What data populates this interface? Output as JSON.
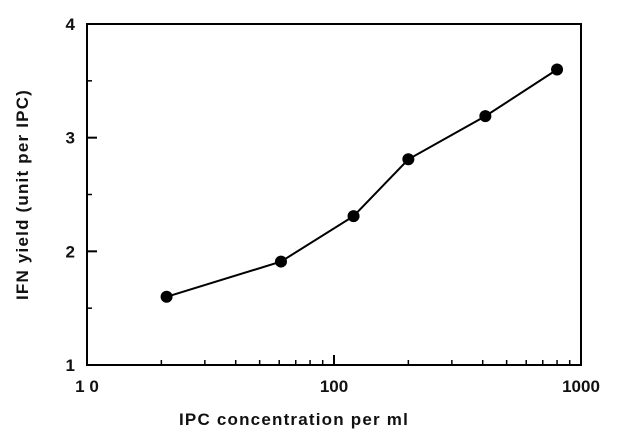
{
  "chart_data": {
    "type": "line",
    "xlabel": "IPC concentration per ml",
    "ylabel": "IFN yield (unit per IPC)",
    "xscale": "log",
    "xlim": [
      10,
      1000
    ],
    "ylim": [
      1,
      4
    ],
    "x_ticks": [
      10,
      100,
      1000
    ],
    "x_tick_labels": [
      "1 0",
      "100",
      "1000"
    ],
    "y_ticks": [
      1,
      2,
      3,
      4
    ],
    "y_tick_labels": [
      "1",
      "2",
      "3",
      "4"
    ],
    "grid": false,
    "legend": "none",
    "series": [
      {
        "x": [
          21,
          61,
          120,
          200,
          410,
          800
        ],
        "y": [
          1.6,
          1.91,
          2.31,
          2.81,
          3.19,
          3.6
        ],
        "color": "#000000",
        "marker": "circle"
      }
    ]
  }
}
